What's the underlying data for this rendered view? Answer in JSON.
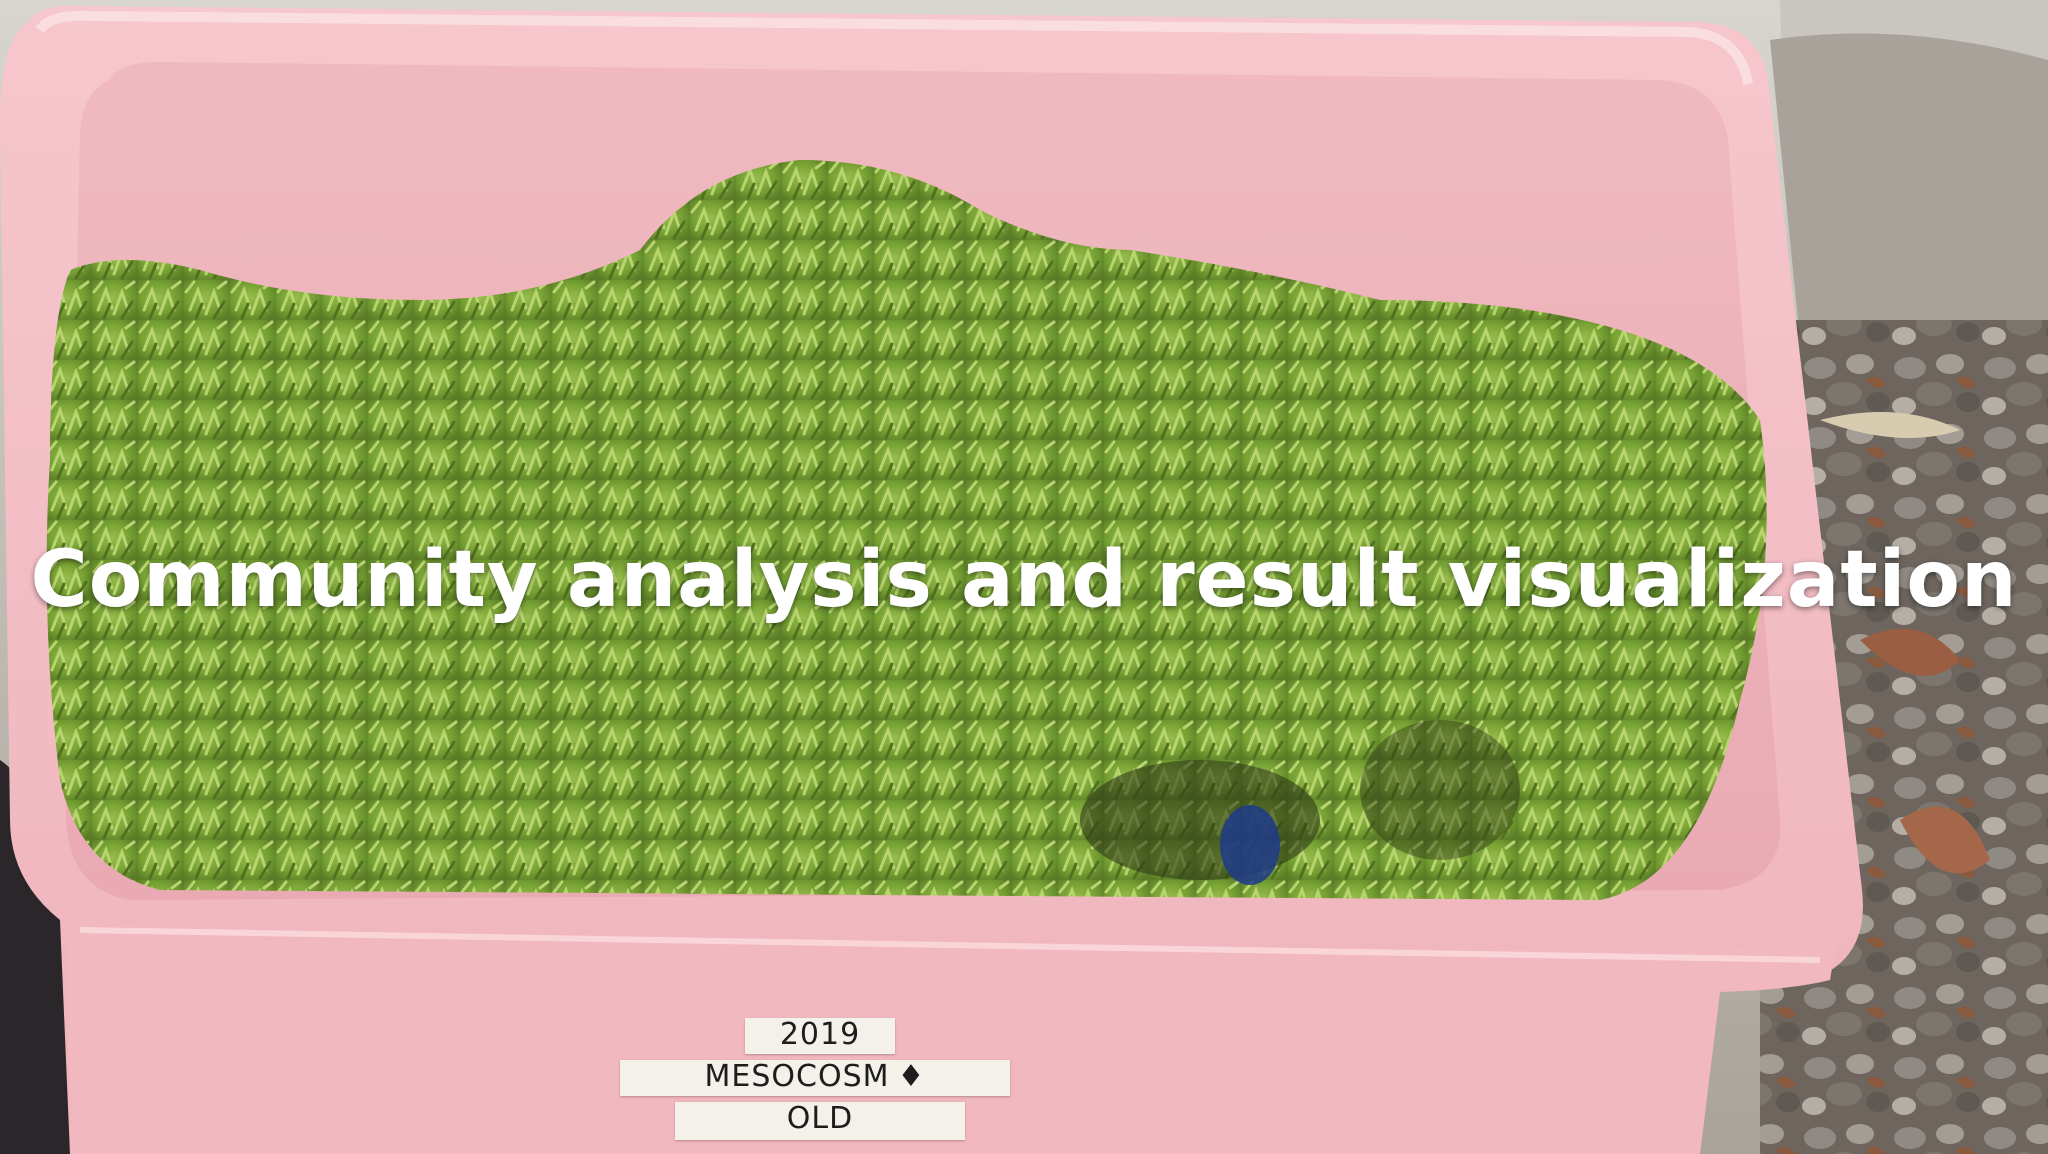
{
  "caption": "Community analysis and result visualization",
  "container_labels": {
    "year": "2019",
    "name": "MESOCOSM",
    "name_mark": "♦",
    "age": "OLD"
  },
  "colors": {
    "tub": "#f3bcc3",
    "moss": "#7aa63a",
    "ground": "#8b8178",
    "caption": "#ffffff"
  }
}
